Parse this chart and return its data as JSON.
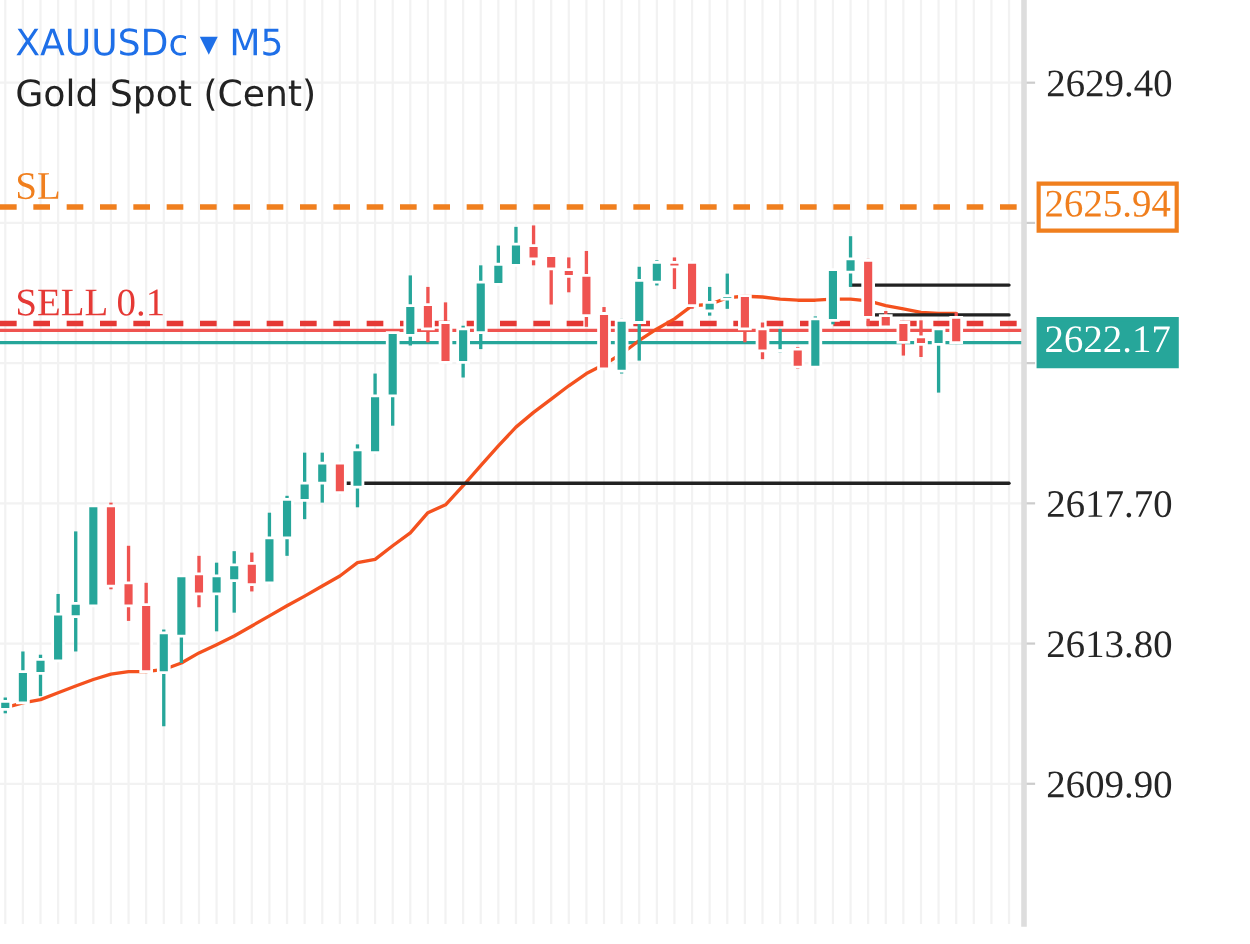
{
  "chart_data": {
    "type": "candlestick",
    "title": "XAUUSDc ▾ M5",
    "subtitle": "Gold Spot (Cent)",
    "categories": [
      null,
      null,
      null,
      null,
      null,
      null,
      null,
      null,
      null,
      null,
      null,
      null,
      null,
      null,
      null,
      null,
      null,
      null,
      null,
      null,
      null,
      null,
      null,
      null,
      null,
      null,
      null,
      null,
      null,
      null,
      null,
      null,
      null,
      null,
      null,
      null,
      null,
      null,
      null,
      null,
      null,
      null,
      null,
      null,
      null,
      null,
      null,
      null,
      null,
      null,
      null,
      null,
      null,
      null,
      null,
      null,
      null,
      null
    ],
    "ohlc": [
      [
        2611.97,
        2612.3,
        2611.86,
        2612.19
      ],
      [
        2612.15,
        2613.58,
        2612.15,
        2613.02
      ],
      [
        2612.97,
        2613.49,
        2612.34,
        2613.36
      ],
      [
        2613.32,
        2615.18,
        2613.32,
        2614.62
      ],
      [
        2614.55,
        2616.92,
        2613.58,
        2614.92
      ],
      [
        2614.85,
        2617.63,
        2614.85,
        2617.63
      ],
      [
        2617.63,
        2617.72,
        2615.31,
        2615.4
      ],
      [
        2615.49,
        2616.52,
        2614.43,
        2614.85
      ],
      [
        2614.88,
        2615.49,
        2613.02,
        2613.02
      ],
      [
        2612.99,
        2614.19,
        2611.5,
        2614.1
      ],
      [
        2614.01,
        2615.68,
        2613.26,
        2615.68
      ],
      [
        2615.74,
        2616.24,
        2614.81,
        2615.18
      ],
      [
        2615.18,
        2616.05,
        2614.14,
        2615.68
      ],
      [
        2615.55,
        2616.37,
        2614.66,
        2615.99
      ],
      [
        2616.03,
        2616.33,
        2615.25,
        2615.44
      ],
      [
        2615.49,
        2617.44,
        2615.49,
        2616.74
      ],
      [
        2616.74,
        2617.91,
        2616.24,
        2617.81
      ],
      [
        2617.78,
        2619.11,
        2617.26,
        2618.26
      ],
      [
        2618.26,
        2619.11,
        2617.72,
        2618.82
      ],
      [
        2618.82,
        2618.82,
        2617.97,
        2618.0
      ],
      [
        2618.15,
        2619.34,
        2617.59,
        2619.19
      ],
      [
        2619.11,
        2621.31,
        2619.11,
        2620.69
      ],
      [
        2620.69,
        2622.45,
        2619.86,
        2622.45
      ],
      [
        2622.37,
        2624.04,
        2622.09,
        2623.2
      ],
      [
        2623.23,
        2623.72,
        2622.18,
        2622.55
      ],
      [
        2622.73,
        2623.29,
        2621.62,
        2621.62
      ],
      [
        2621.62,
        2622.64,
        2621.2,
        2622.55
      ],
      [
        2622.45,
        2624.32,
        2621.99,
        2623.85
      ],
      [
        2623.79,
        2624.87,
        2623.79,
        2624.35
      ],
      [
        2624.32,
        2625.39,
        2624.32,
        2624.91
      ],
      [
        2624.87,
        2625.43,
        2624.32,
        2624.5
      ],
      [
        2624.59,
        2624.59,
        2623.23,
        2624.22
      ],
      [
        2624.2,
        2624.54,
        2623.57,
        2624.01
      ],
      [
        2624.04,
        2624.72,
        2622.61,
        2622.92
      ],
      [
        2622.98,
        2623.16,
        2621.44,
        2621.44
      ],
      [
        2621.38,
        2622.83,
        2621.31,
        2622.79
      ],
      [
        2622.73,
        2624.28,
        2621.67,
        2623.9
      ],
      [
        2623.85,
        2624.46,
        2623.76,
        2624.4
      ],
      [
        2624.4,
        2624.54,
        2623.66,
        2624.28
      ],
      [
        2624.4,
        2624.4,
        2623.11,
        2623.2
      ],
      [
        2623.05,
        2623.72,
        2622.92,
        2623.29
      ],
      [
        2623.38,
        2624.09,
        2623.11,
        2623.48
      ],
      [
        2623.48,
        2623.48,
        2622.18,
        2622.55
      ],
      [
        2622.55,
        2622.73,
        2621.71,
        2621.94
      ],
      [
        2621.94,
        2622.55,
        2621.9,
        2621.95
      ],
      [
        2621.99,
        2622.05,
        2621.44,
        2621.49
      ],
      [
        2621.49,
        2622.9,
        2621.49,
        2622.83
      ],
      [
        2622.79,
        2624.2,
        2622.68,
        2624.2
      ],
      [
        2624.13,
        2625.13,
        2623.72,
        2624.5
      ],
      [
        2624.46,
        2624.5,
        2622.64,
        2622.87
      ],
      [
        2622.92,
        2623.05,
        2622.61,
        2622.61
      ],
      [
        2622.73,
        2622.73,
        2621.81,
        2622.18
      ],
      [
        2622.33,
        2622.79,
        2621.77,
        2622.12
      ],
      [
        2622.12,
        2622.55,
        2620.78,
        2622.55
      ],
      [
        2622.87,
        2623.01,
        2622.17,
        2622.17
      ],
      null,
      null,
      null
    ],
    "annotations": [
      "2625.94",
      "2622.17"
    ],
    "series": [
      {
        "type": "line",
        "color": "#f4511e",
        "values": [
          2612.02,
          2612.15,
          2612.24,
          2612.43,
          2612.62,
          2612.8,
          2612.95,
          2613.02,
          2613.02,
          2613.08,
          2613.26,
          2613.54,
          2613.77,
          2614.01,
          2614.29,
          2614.57,
          2614.85,
          2615.12,
          2615.4,
          2615.68,
          2616.05,
          2616.14,
          2616.52,
          2616.88,
          2617.44,
          2617.66,
          2618.19,
          2618.75,
          2619.3,
          2619.82,
          2620.23,
          2620.6,
          2620.97,
          2621.31,
          2621.56,
          2621.86,
          2622.23,
          2622.55,
          2622.83,
          2623.2,
          2623.23,
          2623.42,
          2623.46,
          2623.44,
          2623.38,
          2623.35,
          2623.35,
          2623.38,
          2623.38,
          2623.33,
          2623.2,
          2623.11,
          2623.01,
          2622.98,
          2622.98,
          null,
          null,
          null
        ]
      },
      {
        "type": "line",
        "color": "#222222",
        "values": [
          null,
          null,
          null,
          null,
          null,
          null,
          null,
          null,
          null,
          null,
          null,
          null,
          null,
          null,
          null,
          null,
          null,
          null,
          null,
          2618.26,
          2618.26,
          2618.26,
          2618.26,
          2618.26,
          2618.26,
          2618.26,
          2618.26,
          2618.26,
          2618.26,
          2618.26,
          2618.26,
          2618.26,
          2618.26,
          2618.26,
          2618.26,
          2618.26,
          2618.26,
          2618.26,
          2618.26,
          2618.26,
          2618.26,
          2618.26,
          2618.26,
          2618.26,
          2618.26,
          2618.26,
          2618.26,
          2618.26,
          2618.26,
          2618.26,
          2618.26,
          2618.26,
          2618.26,
          2618.26,
          2618.26,
          2618.26,
          2618.26,
          2618.26
        ]
      },
      {
        "type": "line",
        "color": "#222222",
        "values": [
          null,
          null,
          null,
          null,
          null,
          null,
          null,
          null,
          null,
          null,
          null,
          null,
          null,
          null,
          null,
          null,
          null,
          null,
          null,
          null,
          null,
          null,
          null,
          null,
          null,
          null,
          null,
          null,
          null,
          null,
          null,
          null,
          null,
          null,
          null,
          null,
          null,
          null,
          null,
          null,
          null,
          null,
          null,
          null,
          null,
          null,
          null,
          null,
          2623.77,
          2623.77,
          2623.77,
          2623.77,
          2623.77,
          2623.77,
          2623.77,
          2623.77,
          2623.77,
          2623.77
        ]
      },
      {
        "type": "line",
        "color": "#222222",
        "values": [
          null,
          null,
          null,
          null,
          null,
          null,
          null,
          null,
          null,
          null,
          null,
          null,
          null,
          null,
          null,
          null,
          null,
          null,
          null,
          null,
          null,
          null,
          null,
          null,
          null,
          null,
          null,
          null,
          null,
          null,
          null,
          null,
          null,
          null,
          null,
          null,
          null,
          null,
          null,
          null,
          null,
          null,
          null,
          null,
          null,
          null,
          null,
          null,
          null,
          2622.94,
          2622.94,
          2622.94,
          2622.94,
          2622.94,
          2622.94,
          2622.94,
          2622.94,
          2622.94
        ]
      }
    ],
    "ref_lines": [
      {
        "axis": "y",
        "value": 2625.94,
        "label": "SL",
        "color": "#f07f1e",
        "line_style": "dashed"
      },
      {
        "axis": "y",
        "value": 2622.7,
        "label": "SELL 0.1",
        "color": "#e53935",
        "line_style": "dashed"
      },
      {
        "axis": "y",
        "value": 2622.51,
        "color": "#ef5350",
        "line_style": "solid"
      },
      {
        "axis": "y",
        "value": 2622.17,
        "color": "#26a69a",
        "line_style": "solid"
      }
    ],
    "ylim": [
      2606.0,
      2631.7
    ],
    "yticks": [
      {
        "value": 2609.9,
        "label": "2609.90"
      },
      {
        "value": 2613.8,
        "label": "2613.80"
      },
      {
        "value": 2617.7,
        "label": "2617.70"
      },
      {
        "value": 2621.6,
        "label": null
      },
      {
        "value": 2625.5,
        "label": null
      },
      {
        "value": 2629.4,
        "label": "2629.40"
      }
    ],
    "grid": true
  }
}
